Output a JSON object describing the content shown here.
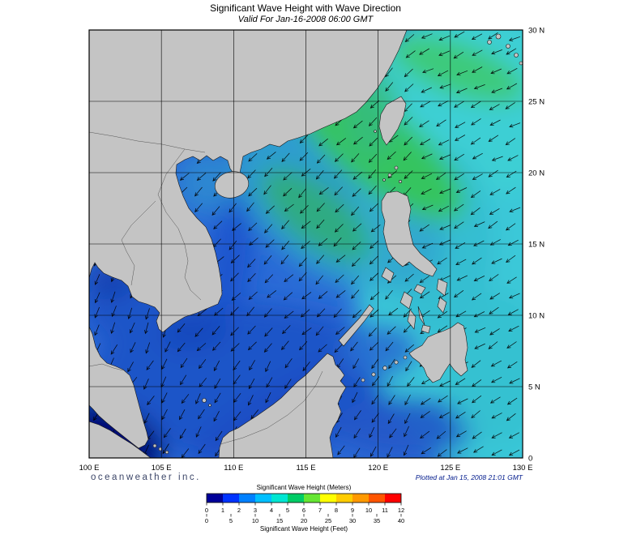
{
  "header": {
    "title": "Significant Wave Height with Wave Direction",
    "subtitle": "Valid For Jan-16-2008 06:00 GMT"
  },
  "footer": {
    "branding": "oceanweather inc.",
    "plotted": "Plotted at Jan 15, 2008 21:01 GMT"
  },
  "map": {
    "lon_labels": [
      "100 E",
      "105 E",
      "110 E",
      "115 E",
      "120 E",
      "125 E",
      "130 E"
    ],
    "lat_labels": [
      "30 N",
      "25 N",
      "20 N",
      "15 N",
      "10 N",
      "5 N",
      "0"
    ],
    "lon_min": 100,
    "lon_max": 130,
    "lat_min": 0,
    "lat_max": 30,
    "grid_step_deg": 5,
    "arrow_color": "#000000",
    "land_color": "#c4c4c4"
  },
  "legend": {
    "meters_title": "Significant Wave Height (Meters)",
    "feet_title": "Significant Wave Height (Feet)",
    "meters_ticks": [
      "0",
      "1",
      "2",
      "3",
      "4",
      "5",
      "6",
      "7",
      "8",
      "9",
      "10",
      "11",
      "12"
    ],
    "feet_ticks": [
      "0",
      "5",
      "10",
      "15",
      "20",
      "25",
      "30",
      "35",
      "40"
    ],
    "colors": [
      "#000099",
      "#0033ff",
      "#0080ff",
      "#00bfff",
      "#00e6d2",
      "#00cc66",
      "#66e633",
      "#ffff00",
      "#ffcc00",
      "#ff9900",
      "#ff5500",
      "#ff0000"
    ]
  }
}
